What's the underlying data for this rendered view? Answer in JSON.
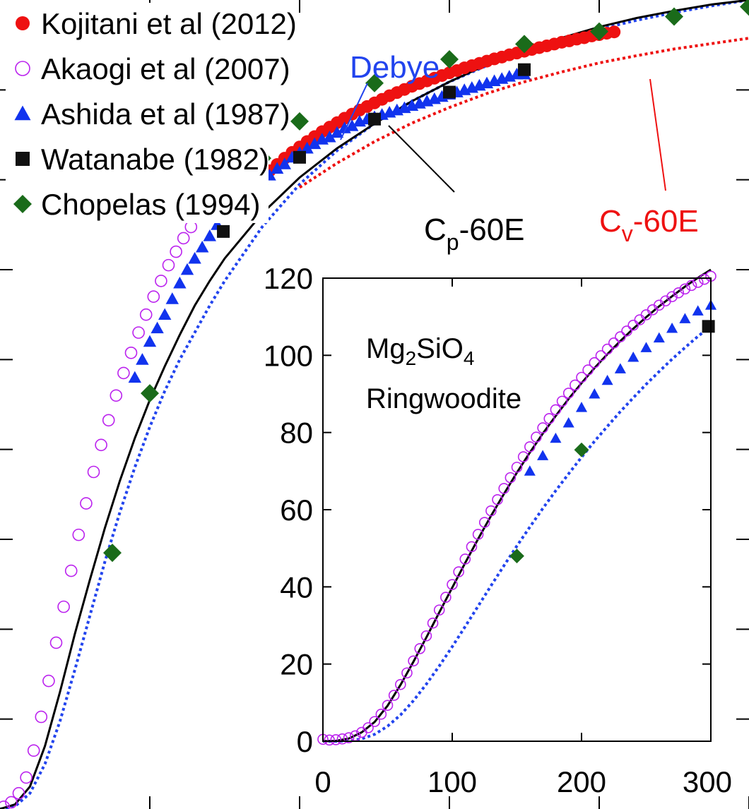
{
  "chart_data": [
    {
      "type": "scatter",
      "panel": "main",
      "title": "",
      "xlabel": "",
      "ylabel": "",
      "xlim": [
        0,
        1000
      ],
      "ylim": [
        0,
        180
      ],
      "x_tick_values": [
        200,
        400,
        600,
        800,
        1000
      ],
      "y_tick_values": [
        20,
        40,
        60,
        80,
        100,
        120,
        140,
        160
      ],
      "tick_labels_visible": false,
      "legend": {
        "placement": "top-left",
        "entries": [
          {
            "label": "Kojitani et al (2012)",
            "marker": "filled-circle",
            "color": "#ee1111"
          },
          {
            "label": "Akaogi et al (2007)",
            "marker": "open-circle",
            "color": "#bb22ee"
          },
          {
            "label": "Ashida et al (1987)",
            "marker": "triangle",
            "color": "#1133ee"
          },
          {
            "label": "Watanabe (1982)",
            "marker": "square",
            "color": "#111111"
          },
          {
            "label": "Chopelas (1994)",
            "marker": "diamond",
            "color": "#1a6b1a"
          }
        ]
      },
      "annotations": {
        "debye": "Debye",
        "cp_prefix": "C",
        "cp_sub": "p",
        "cp_suffix": "-60E",
        "cv_prefix": "C",
        "cv_sub": "v",
        "cv_suffix": "-60E"
      },
      "series": [
        {
          "name": "Kojitani et al (2012)",
          "marker": "filled-circle",
          "color": "#ee1111",
          "x": [
            300,
            310,
            320,
            330,
            340,
            350,
            360,
            370,
            380,
            390,
            400,
            410,
            420,
            430,
            440,
            450,
            460,
            470,
            480,
            490,
            500,
            510,
            520,
            530,
            540,
            550,
            560,
            570,
            580,
            590,
            600,
            610,
            620,
            630,
            640,
            650,
            660,
            670,
            680,
            690,
            700,
            710,
            720,
            730,
            740,
            750,
            760,
            770,
            780,
            790,
            800,
            810,
            820
          ],
          "y": [
            131.9,
            133.8,
            135.6,
            137.3,
            139.0,
            140.5,
            142.0,
            143.4,
            144.8,
            146.1,
            147.3,
            148.5,
            149.6,
            150.7,
            151.7,
            152.7,
            153.7,
            154.6,
            155.5,
            156.3,
            157.1,
            157.9,
            158.7,
            159.4,
            160.1,
            160.8,
            161.4,
            162.0,
            162.6,
            163.2,
            163.8,
            164.3,
            164.9,
            165.4,
            165.9,
            166.4,
            166.9,
            167.3,
            167.8,
            168.2,
            168.6,
            169.0,
            169.4,
            169.8,
            170.2,
            170.6,
            170.9,
            171.3,
            171.6,
            172.0,
            172.3,
            172.6,
            172.9
          ]
        },
        {
          "name": "Akaogi et al (2007)",
          "marker": "open-circle",
          "color": "#bb22ee",
          "x": [
            5,
            15,
            25,
            35,
            45,
            55,
            65,
            75,
            85,
            95,
            105,
            115,
            125,
            135,
            145,
            155,
            165,
            175,
            185,
            195,
            205,
            215,
            225,
            235,
            245,
            255,
            265,
            275,
            285,
            295,
            305
          ],
          "y": [
            0.5,
            1.5,
            3.5,
            7,
            13,
            20.5,
            28.5,
            37,
            45,
            53,
            61,
            68,
            75,
            81,
            86.5,
            92,
            97,
            101.5,
            106,
            110,
            114,
            117.5,
            121,
            124,
            127,
            129.5,
            132,
            134.5,
            136.5,
            138.5,
            140.5
          ]
        },
        {
          "name": "Ashida et al (1987)",
          "marker": "triangle",
          "color": "#1133ee",
          "x": [
            180,
            190,
            200,
            210,
            220,
            230,
            240,
            250,
            260,
            270,
            280,
            290,
            300,
            310,
            320,
            330,
            340,
            350,
            360,
            370,
            380,
            390,
            400,
            410,
            420,
            430,
            440,
            450,
            460,
            470,
            480,
            490,
            500,
            510,
            520,
            530,
            540,
            550,
            560,
            570,
            580,
            590,
            600,
            610,
            620,
            630,
            640,
            650,
            660,
            670,
            680,
            690,
            700
          ],
          "y": [
            96,
            100,
            104,
            107,
            110,
            113.5,
            117,
            120,
            122.5,
            125,
            127.5,
            130,
            132.5,
            134.5,
            136,
            137.5,
            138.5,
            140,
            141,
            142.5,
            143.5,
            145,
            146,
            147,
            148,
            149,
            149.5,
            150.5,
            151.5,
            152,
            153,
            153.5,
            154,
            154.5,
            155,
            155.5,
            156,
            156.5,
            157,
            157.5,
            158,
            158.5,
            159,
            159.5,
            160,
            160.5,
            161,
            161.5,
            162,
            162.5,
            163,
            163.5,
            163.5
          ]
        },
        {
          "name": "Watanabe (1982)",
          "marker": "square",
          "color": "#111111",
          "x": [
            298.15,
            400,
            500,
            600,
            700
          ],
          "y": [
            128.5,
            145,
            153.5,
            159.5,
            164.5
          ]
        },
        {
          "name": "Chopelas (1994)",
          "marker": "diamond",
          "color": "#1a6b1a",
          "x": [
            150,
            200,
            300,
            350,
            400,
            500,
            600,
            700,
            800,
            900,
            1000
          ],
          "y": [
            57,
            92.5,
            135,
            144.8,
            153,
            161.5,
            166.8,
            170.2,
            173,
            176.3,
            178.5
          ]
        }
      ],
      "lines": [
        {
          "name": "Debye",
          "style": "dotted",
          "color": "#2244ee",
          "x": [
            0,
            20,
            40,
            60,
            80,
            100,
            120,
            140,
            160,
            180,
            200,
            220,
            240,
            260,
            280,
            300,
            350,
            400,
            450,
            500,
            550,
            600,
            650,
            700,
            750,
            800,
            850,
            900,
            950,
            1000
          ],
          "y": [
            0,
            0.6,
            3.5,
            10,
            19.5,
            31,
            43,
            55,
            66,
            76,
            85,
            93,
            100,
            106,
            112,
            117.5,
            129.5,
            139,
            146.5,
            152.5,
            157.5,
            161.8,
            165.4,
            168.5,
            171.2,
            173.5,
            175.5,
            177.2,
            178.7,
            180
          ]
        },
        {
          "name": "Cp-60E",
          "style": "solid",
          "color": "#000000",
          "x": [
            0,
            20,
            40,
            60,
            80,
            100,
            120,
            140,
            160,
            180,
            200,
            220,
            240,
            260,
            280,
            300,
            350,
            400,
            450,
            500,
            550,
            600,
            650,
            700,
            750,
            800,
            850,
            900,
            950,
            1000
          ],
          "y": [
            0,
            1,
            5,
            14,
            26,
            39,
            51,
            62.5,
            73,
            82.5,
            91,
            98.5,
            105.5,
            112,
            117.5,
            122.5,
            132.5,
            140.5,
            147,
            152.5,
            157.5,
            161.8,
            165.6,
            168.8,
            171.6,
            174,
            176,
            177.6,
            179,
            180
          ]
        },
        {
          "name": "Cv-60E",
          "style": "dotted",
          "color": "#ee1111",
          "x": [
            400,
            450,
            500,
            550,
            600,
            650,
            700,
            750,
            800,
            850,
            900,
            950,
            1000
          ],
          "y": [
            138.3,
            143.7,
            148.5,
            152.6,
            156.1,
            159.2,
            161.8,
            164,
            166,
            167.6,
            169.1,
            170.3,
            171.5
          ]
        }
      ]
    },
    {
      "type": "scatter",
      "panel": "inset",
      "title": "",
      "xlabel": "",
      "ylabel": "",
      "xlim": [
        0,
        300
      ],
      "ylim": [
        0,
        120
      ],
      "x_tick_labels": [
        "0",
        "100",
        "200",
        "300"
      ],
      "y_tick_labels": [
        "0",
        "20",
        "40",
        "60",
        "80",
        "100",
        "120"
      ],
      "annotation_line1_prefix": "Mg",
      "annotation_line1_sub1": "2",
      "annotation_line1_mid": "SiO",
      "annotation_line1_sub2": "4",
      "annotation_line2": "Ringwoodite",
      "series": [
        {
          "name": "Akaogi et al (2007)",
          "marker": "open-circle",
          "color": "#bb22ee",
          "x": [
            0,
            5,
            10,
            15,
            20,
            25,
            30,
            35,
            40,
            45,
            50,
            55,
            60,
            65,
            70,
            75,
            80,
            85,
            90,
            95,
            100,
            105,
            110,
            115,
            120,
            125,
            130,
            135,
            140,
            145,
            150,
            155,
            160,
            165,
            170,
            175,
            180,
            185,
            190,
            195,
            200,
            205,
            210,
            215,
            220,
            225,
            230,
            235,
            240,
            245,
            250,
            255,
            260,
            265,
            270,
            275,
            280,
            285,
            290,
            295,
            300
          ],
          "y": [
            0.5,
            0.3,
            0.4,
            0.6,
            0.9,
            1.4,
            2.3,
            3.5,
            5.1,
            7,
            9.3,
            11.9,
            14.7,
            17.7,
            20.8,
            24,
            27.3,
            30.6,
            34,
            37.3,
            40.6,
            43.9,
            47.2,
            50.4,
            53.6,
            56.7,
            59.7,
            62.6,
            65.5,
            68.3,
            71,
            73.7,
            76.3,
            78.8,
            81.2,
            83.6,
            85.9,
            88.1,
            90.2,
            92.3,
            94.3,
            96.2,
            98.1,
            99.9,
            101.6,
            103.2,
            104.8,
            106.3,
            107.8,
            109.2,
            110.5,
            111.8,
            113,
            114.1,
            115.2,
            116.2,
            117.2,
            118.1,
            118.9,
            119.7,
            120.5
          ]
        },
        {
          "name": "Ashida et al (1987)",
          "marker": "triangle",
          "color": "#1133ee",
          "x": [
            160,
            170,
            180,
            190,
            200,
            210,
            220,
            230,
            240,
            250,
            260,
            270,
            280,
            290,
            300
          ],
          "y": [
            70,
            74,
            78.5,
            82.5,
            86.5,
            90,
            93.5,
            96.5,
            99.5,
            102,
            104.5,
            107,
            109.5,
            111.5,
            113
          ]
        },
        {
          "name": "Watanabe (1982)",
          "marker": "square",
          "color": "#111111",
          "x": [
            298.15
          ],
          "y": [
            107.5
          ]
        },
        {
          "name": "Chopelas (1994)",
          "marker": "diamond",
          "color": "#1a6b1a",
          "x": [
            150,
            200
          ],
          "y": [
            48,
            75.5
          ]
        }
      ],
      "lines": [
        {
          "name": "Debye",
          "style": "dotted",
          "color": "#2244ee",
          "x": [
            0,
            10,
            20,
            30,
            40,
            50,
            60,
            70,
            80,
            90,
            100,
            110,
            120,
            130,
            140,
            150,
            160,
            170,
            180,
            190,
            200,
            210,
            220,
            230,
            240,
            250,
            260,
            270,
            280,
            290,
            300
          ],
          "y": [
            0,
            0,
            0.1,
            0.6,
            1.8,
            3.9,
            6.8,
            10.5,
            14.8,
            19.5,
            24.5,
            29.7,
            35,
            40.3,
            45.5,
            50.6,
            55.5,
            60.3,
            64.9,
            69.3,
            73.6,
            77.7,
            81.6,
            85.4,
            89,
            92.5,
            95.8,
            99,
            102,
            104.9,
            107.6
          ]
        },
        {
          "name": "Cp-60E",
          "style": "solid",
          "color": "#000000",
          "x": [
            0,
            10,
            20,
            30,
            40,
            50,
            60,
            70,
            80,
            90,
            100,
            110,
            120,
            130,
            140,
            150,
            160,
            170,
            180,
            190,
            200,
            210,
            220,
            230,
            240,
            250,
            260,
            270,
            280,
            290,
            300
          ],
          "y": [
            0,
            0.1,
            0.7,
            2.3,
            5,
            9.2,
            14.6,
            20.6,
            26.9,
            33.4,
            39.8,
            46.2,
            52.4,
            58.4,
            64.1,
            69.6,
            74.8,
            79.7,
            84.3,
            88.7,
            92.8,
            96.7,
            100.3,
            103.7,
            106.9,
            109.9,
            112.7,
            115.3,
            117.8,
            120.1,
            122.2
          ]
        }
      ]
    }
  ]
}
